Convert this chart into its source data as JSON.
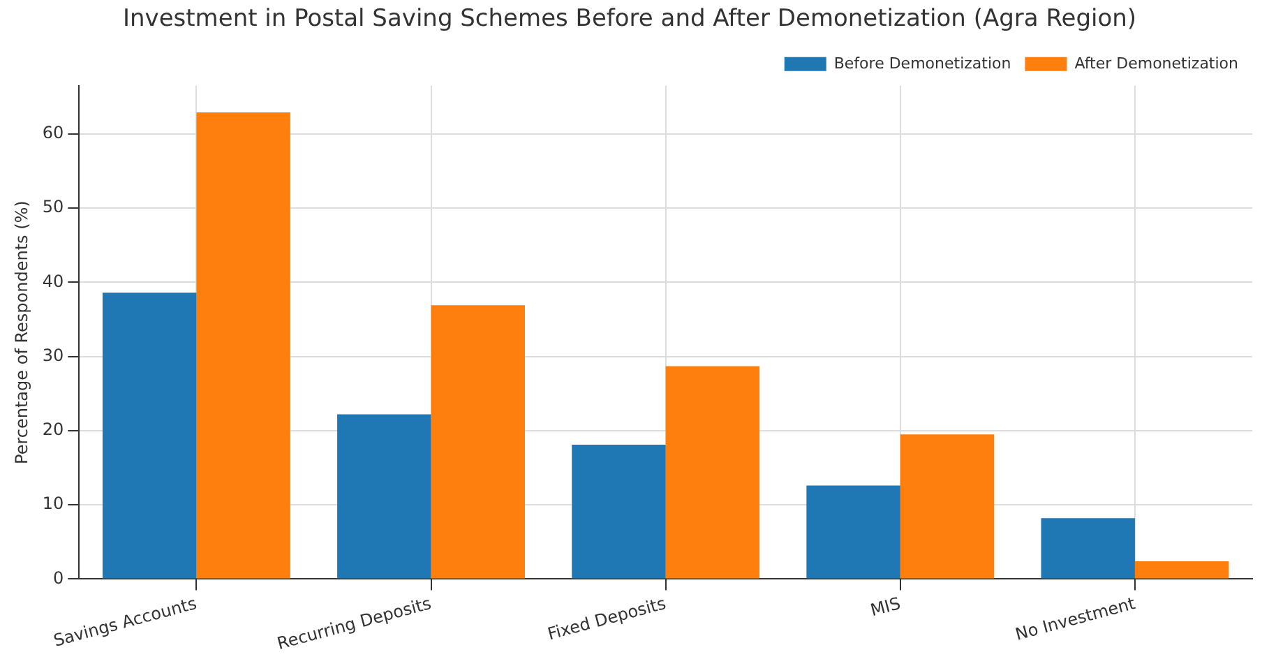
{
  "chart_data": {
    "type": "bar",
    "title": "Investment in Postal Saving Schemes Before and After Demonetization (Agra Region)",
    "ylabel": "Percentage of Respondents (%)",
    "categories": [
      "Savings Accounts",
      "Recurring Deposits",
      "Fixed Deposits",
      "MIS",
      "No Investment"
    ],
    "series": [
      {
        "name": "Before Demonetization",
        "color": "#1f77b4",
        "values": [
          38.6,
          22.2,
          18.1,
          12.6,
          8.2
        ]
      },
      {
        "name": "After Demonetization",
        "color": "#ff7f0e",
        "values": [
          62.9,
          36.9,
          28.7,
          19.5,
          2.4
        ]
      }
    ],
    "ylim": [
      0,
      66.5
    ],
    "yticks": [
      0,
      10,
      20,
      30,
      40,
      50,
      60
    ],
    "grid": true,
    "legend": "top right"
  }
}
